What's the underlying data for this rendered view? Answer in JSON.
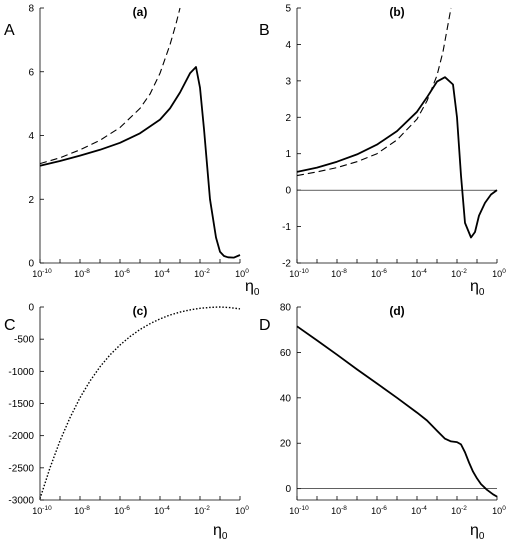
{
  "chart_data": [
    {
      "id": "a",
      "type": "line",
      "title": "(a)",
      "panel_label": "A",
      "xlabel": "η",
      "xlabel_sub": "0",
      "xscale": "log",
      "xlim_exp": [
        -10,
        0
      ],
      "ylim": [
        0,
        8
      ],
      "yticks": [
        0,
        2,
        4,
        6,
        8
      ],
      "yticks_labels": [
        "0",
        "2",
        "4",
        "6",
        "8"
      ],
      "xticks_labels": [
        {
          "base": "10",
          "exp": "-10"
        },
        {
          "base": "10",
          "exp": "-8"
        },
        {
          "base": "10",
          "exp": "-6"
        },
        {
          "base": "10",
          "exp": "-4"
        },
        {
          "base": "10",
          "exp": "-2"
        },
        {
          "base": "10",
          "exp": "0"
        }
      ],
      "zero_line": false,
      "series": [
        {
          "style": "solid",
          "x_exp": [
            -10,
            -9,
            -8,
            -7,
            -6,
            -5,
            -4,
            -3.5,
            -3,
            -2.5,
            -2.2,
            -2,
            -1.8,
            -1.5,
            -1.2,
            -1,
            -0.8,
            -0.6,
            -0.3,
            0
          ],
          "y": [
            3.05,
            3.2,
            3.37,
            3.55,
            3.77,
            4.07,
            4.5,
            4.85,
            5.35,
            5.95,
            6.15,
            5.5,
            4.2,
            2.0,
            0.8,
            0.35,
            0.22,
            0.18,
            0.17,
            0.25
          ]
        },
        {
          "style": "dashed",
          "x_exp": [
            -10,
            -9,
            -8,
            -7,
            -6,
            -5,
            -4.5,
            -4,
            -3.5,
            -3.2,
            -3
          ],
          "y": [
            3.12,
            3.3,
            3.55,
            3.85,
            4.25,
            4.85,
            5.3,
            5.95,
            6.85,
            7.5,
            8.0
          ]
        }
      ]
    },
    {
      "id": "b",
      "type": "line",
      "title": "(b)",
      "panel_label": "B",
      "xlabel": "η",
      "xlabel_sub": "0",
      "xscale": "log",
      "xlim_exp": [
        -10,
        0
      ],
      "ylim": [
        -2,
        5
      ],
      "yticks": [
        -2,
        -1,
        0,
        1,
        2,
        3,
        4,
        5
      ],
      "yticks_labels": [
        "-2",
        "-1",
        "0",
        "1",
        "2",
        "3",
        "4",
        "5"
      ],
      "xticks_labels": [
        {
          "base": "10",
          "exp": "-10"
        },
        {
          "base": "10",
          "exp": "-8"
        },
        {
          "base": "10",
          "exp": "-6"
        },
        {
          "base": "10",
          "exp": "-4"
        },
        {
          "base": "10",
          "exp": "-2"
        },
        {
          "base": "10",
          "exp": "0"
        }
      ],
      "zero_line": true,
      "series": [
        {
          "style": "solid",
          "x_exp": [
            -10,
            -9,
            -8,
            -7,
            -6,
            -5,
            -4,
            -3.5,
            -3,
            -2.6,
            -2.2,
            -2,
            -1.8,
            -1.6,
            -1.3,
            -1.1,
            -0.9,
            -0.6,
            -0.3,
            0
          ],
          "y": [
            0.5,
            0.62,
            0.78,
            0.98,
            1.25,
            1.62,
            2.15,
            2.55,
            2.98,
            3.1,
            2.9,
            2.0,
            0.4,
            -0.9,
            -1.3,
            -1.15,
            -0.7,
            -0.35,
            -0.12,
            0.0
          ]
        },
        {
          "style": "dashed",
          "x_exp": [
            -10,
            -9,
            -8,
            -7,
            -6,
            -5,
            -4,
            -3.5,
            -3,
            -2.7,
            -2.5,
            -2.3
          ],
          "y": [
            0.4,
            0.5,
            0.62,
            0.78,
            1.0,
            1.38,
            1.95,
            2.45,
            3.15,
            3.8,
            4.4,
            5.0
          ]
        }
      ]
    },
    {
      "id": "c",
      "type": "line",
      "title": "(c)",
      "panel_label": "C",
      "xlabel": "η",
      "xlabel_sub": "0",
      "xscale": "log",
      "xlim_exp": [
        -10,
        0
      ],
      "ylim": [
        -3000,
        0
      ],
      "yticks": [
        -3000,
        -2500,
        -2000,
        -1500,
        -1000,
        -500,
        0
      ],
      "yticks_labels": [
        "-3000",
        "-2500",
        "-2000",
        "-1500",
        "-1000",
        "-500",
        "0"
      ],
      "xticks_labels": [
        {
          "base": "10",
          "exp": "-10"
        },
        {
          "base": "10",
          "exp": "-8"
        },
        {
          "base": "10",
          "exp": "-6"
        },
        {
          "base": "10",
          "exp": "-4"
        },
        {
          "base": "10",
          "exp": "-2"
        },
        {
          "base": "10",
          "exp": "0"
        }
      ],
      "zero_line": false,
      "series": [
        {
          "style": "dotted",
          "x_exp": [
            -10,
            -9.5,
            -9,
            -8.5,
            -8,
            -7.5,
            -7,
            -6.5,
            -6,
            -5.5,
            -5,
            -4.5,
            -4,
            -3.5,
            -3,
            -2.5,
            -2,
            -1.5,
            -1,
            -0.5,
            0
          ],
          "y": [
            -2980,
            -2500,
            -2080,
            -1720,
            -1410,
            -1150,
            -930,
            -745,
            -590,
            -460,
            -350,
            -260,
            -185,
            -125,
            -80,
            -45,
            -20,
            -6,
            0,
            -10,
            -30
          ]
        }
      ]
    },
    {
      "id": "d",
      "type": "line",
      "title": "(d)",
      "panel_label": "D",
      "xlabel": "η",
      "xlabel_sub": "0",
      "xscale": "log",
      "xlim_exp": [
        -10,
        0
      ],
      "ylim": [
        -5,
        80
      ],
      "yticks": [
        0,
        20,
        40,
        60,
        80
      ],
      "yticks_labels": [
        "0",
        "20",
        "40",
        "60",
        "80"
      ],
      "xticks_labels": [
        {
          "base": "10",
          "exp": "-10"
        },
        {
          "base": "10",
          "exp": "-8"
        },
        {
          "base": "10",
          "exp": "-6"
        },
        {
          "base": "10",
          "exp": "-4"
        },
        {
          "base": "10",
          "exp": "-2"
        },
        {
          "base": "10",
          "exp": "0"
        }
      ],
      "zero_line": true,
      "series": [
        {
          "style": "solid",
          "x_exp": [
            -10,
            -9,
            -8,
            -7,
            -6,
            -5,
            -4,
            -3.5,
            -3,
            -2.6,
            -2.3,
            -2,
            -1.8,
            -1.6,
            -1.4,
            -1.2,
            -1,
            -0.8,
            -0.5,
            -0.2,
            0
          ],
          "y": [
            71.5,
            65.3,
            59.0,
            52.5,
            46.3,
            40.0,
            33.5,
            30.0,
            25.5,
            22.0,
            20.8,
            20.5,
            19.5,
            16.0,
            11.5,
            7.5,
            4.5,
            2.0,
            -0.5,
            -2.5,
            -3.5
          ]
        }
      ]
    }
  ]
}
